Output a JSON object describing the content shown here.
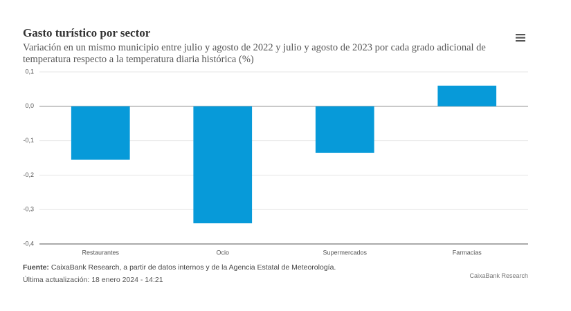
{
  "chart_data": {
    "type": "bar",
    "title": "Gasto turístico por sector",
    "subtitle": "Variación en un mismo municipio entre julio y agosto de 2022 y julio y agosto de 2023 por cada grado adicional de temperatura respecto a la temperatura diaria histórica (%)",
    "categories": [
      "Restaurantes",
      "Ocio",
      "Supermercados",
      "Farmacias"
    ],
    "values": [
      -0.155,
      -0.34,
      -0.135,
      0.06
    ],
    "color": "#079ad9",
    "ylim": [
      -0.4,
      0.1
    ],
    "yticks": [
      {
        "value": -0.4,
        "label": "-0,4"
      },
      {
        "value": -0.3,
        "label": "-0,3"
      },
      {
        "value": -0.2,
        "label": "-0,2"
      },
      {
        "value": -0.1,
        "label": "-0,1"
      },
      {
        "value": 0,
        "label": "0,0"
      },
      {
        "value": 0.1,
        "label": "0,1"
      }
    ],
    "grid": true,
    "source": {
      "label": "Fuente:",
      "text": "CaixaBank Research, a partir de datos internos y de la Agencia Estatal de Meteorología."
    },
    "updated": "Última actualización: 18 enero 2024 - 14:21",
    "credit": "CaixaBank Research"
  }
}
